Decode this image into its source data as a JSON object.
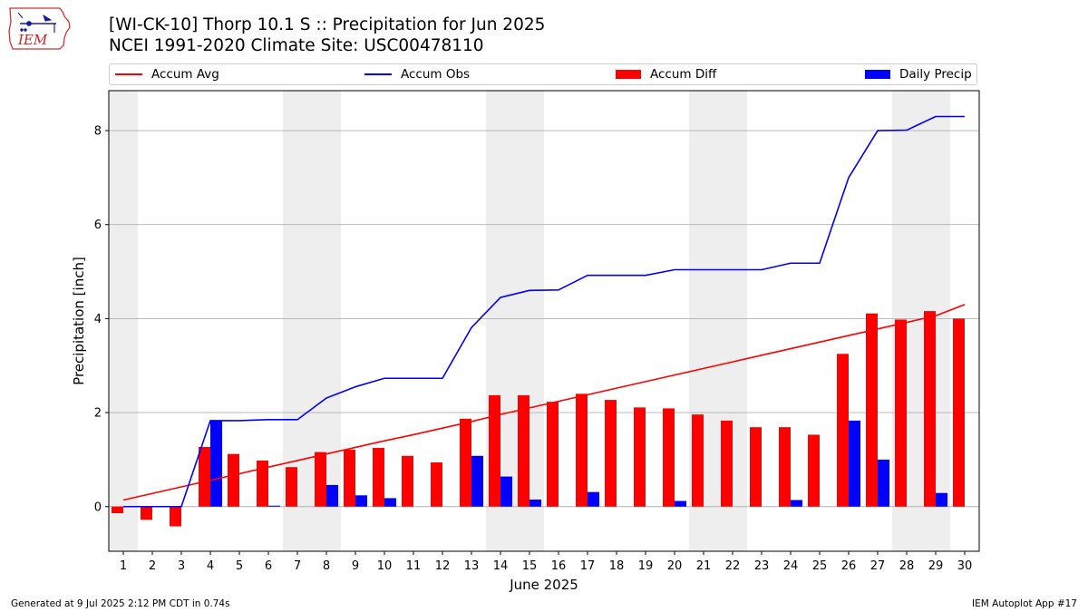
{
  "title_line1": "[WI-CK-10] Thorp 10.1 S :: Precipitation for Jun 2025",
  "title_line2": "NCEI 1991-2020 Climate Site: USC00478110",
  "logo_text": "IEM",
  "footer_left": "Generated at 9 Jul 2025 2:12 PM CDT in 0.74s",
  "footer_right": "IEM Autoplot App #17",
  "colors": {
    "accum_avg": "#ff0000",
    "accum_obs": "#0000ff",
    "accum_diff": "#ff0000",
    "daily_precip": "#0000ff",
    "weekend_shade": "#eeeeee",
    "grid": "#b0b0b0"
  },
  "chart_data": {
    "type": "bar",
    "xlabel": "June 2025",
    "ylabel": "Precipitation [inch]",
    "ylim": [
      -0.95,
      8.85
    ],
    "yticks": [
      0,
      2,
      4,
      6,
      8
    ],
    "xticks": [
      1,
      2,
      3,
      4,
      5,
      6,
      7,
      8,
      9,
      10,
      11,
      12,
      13,
      14,
      15,
      16,
      17,
      18,
      19,
      20,
      21,
      22,
      23,
      24,
      25,
      26,
      27,
      28,
      29,
      30
    ],
    "grid": "horizontal",
    "legend_position": "top",
    "weekend_days": [
      1,
      7,
      8,
      14,
      15,
      21,
      22,
      28,
      29
    ],
    "series": [
      {
        "name": "Accum Avg",
        "kind": "line",
        "values": [
          0.14,
          0.28,
          0.42,
          0.56,
          0.7,
          0.84,
          0.98,
          1.12,
          1.26,
          1.4,
          1.53,
          1.67,
          1.81,
          1.96,
          2.1,
          2.24,
          2.38,
          2.52,
          2.66,
          2.8,
          2.94,
          3.08,
          3.22,
          3.36,
          3.5,
          3.64,
          3.78,
          3.92,
          4.06,
          4.3
        ]
      },
      {
        "name": "Accum Obs",
        "kind": "line",
        "values": [
          0.0,
          0.0,
          0.0,
          1.83,
          1.83,
          1.85,
          1.85,
          2.31,
          2.55,
          2.73,
          2.73,
          2.73,
          3.81,
          4.45,
          4.6,
          4.61,
          4.92,
          4.92,
          4.92,
          5.04,
          5.04,
          5.04,
          5.04,
          5.18,
          5.18,
          7.0,
          8.0,
          8.01,
          8.3,
          8.3
        ]
      },
      {
        "name": "Accum Diff",
        "kind": "bar",
        "values": [
          -0.14,
          -0.28,
          -0.42,
          1.27,
          1.12,
          0.98,
          0.84,
          1.16,
          1.21,
          1.25,
          1.08,
          0.94,
          1.87,
          2.37,
          2.37,
          2.23,
          2.4,
          2.27,
          2.11,
          2.09,
          1.96,
          1.83,
          1.69,
          1.69,
          1.53,
          3.25,
          4.11,
          3.98,
          4.16,
          4.0
        ]
      },
      {
        "name": "Daily Precip",
        "kind": "bar",
        "values": [
          0.0,
          0.0,
          0.0,
          1.83,
          0.0,
          0.02,
          0.0,
          0.46,
          0.24,
          0.18,
          0.0,
          0.0,
          1.08,
          0.64,
          0.15,
          0.0,
          0.31,
          0.0,
          0.0,
          0.12,
          0.0,
          0.0,
          0.0,
          0.14,
          0.0,
          1.83,
          1.0,
          0.0,
          0.29,
          0.0
        ]
      }
    ]
  }
}
